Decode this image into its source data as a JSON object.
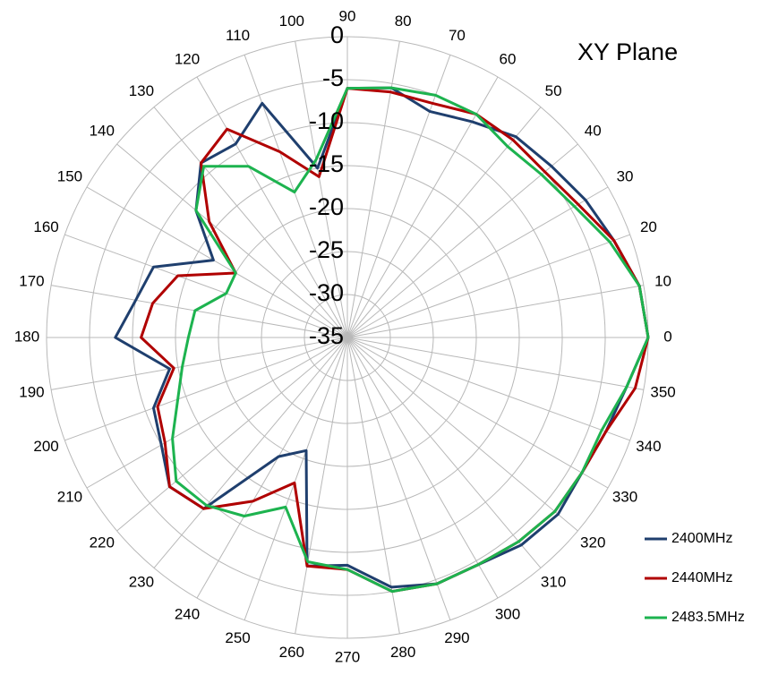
{
  "chart_data": {
    "type": "line",
    "polar": true,
    "title": "XY Plane",
    "r_range": [
      -35,
      0
    ],
    "r_ticks": [
      0,
      -5,
      -10,
      -15,
      -20,
      -25,
      -30,
      -35
    ],
    "angle_ticks": [
      0,
      10,
      20,
      30,
      40,
      50,
      60,
      70,
      80,
      90,
      100,
      110,
      120,
      130,
      140,
      150,
      160,
      170,
      180,
      190,
      200,
      210,
      220,
      230,
      240,
      250,
      260,
      270,
      280,
      290,
      300,
      310,
      320,
      330,
      340,
      350
    ],
    "angle_direction": "counterclockwise",
    "angle_zero": "right",
    "grid": true,
    "legend_position": "bottom-right",
    "angles": [
      0,
      10,
      20,
      30,
      40,
      50,
      60,
      70,
      80,
      90,
      100,
      110,
      120,
      130,
      140,
      150,
      160,
      170,
      180,
      190,
      200,
      210,
      220,
      230,
      240,
      250,
      260,
      270,
      280,
      290,
      300,
      310,
      320,
      330,
      340,
      350
    ],
    "series": [
      {
        "name": "2400MHz",
        "color": "#1f3f6e",
        "values": [
          0,
          -0.5,
          -2,
          -3,
          -4,
          -4.5,
          -6,
          -7,
          -5.5,
          -6,
          -15,
          -6,
          -9,
          -8.5,
          -12,
          -17,
          -11,
          -10,
          -8,
          -14,
          -11,
          -10,
          -8,
          -9,
          -19,
          -21,
          -8,
          -8.5,
          -5.5,
          -4.5,
          -4.5,
          -3.5,
          -3,
          -3.5,
          -3,
          -2
        ]
      },
      {
        "name": "2440MHz",
        "color": "#b00000",
        "values": [
          0,
          -0.5,
          -2,
          -4,
          -5,
          -5,
          -5,
          -6,
          -6,
          -6,
          -16,
          -12,
          -7,
          -8.5,
          -14,
          -20,
          -14,
          -12,
          -11,
          -14.5,
          -11.5,
          -10.5,
          -8,
          -9,
          -13,
          -17,
          -8,
          -8,
          -5,
          -4.5,
          -4.5,
          -4,
          -3.5,
          -3.5,
          -3,
          -1
        ]
      },
      {
        "name": "2483.5MHz",
        "color": "#1db34f",
        "values": [
          0,
          -0.5,
          -2.5,
          -4.5,
          -5.5,
          -6,
          -5,
          -5,
          -5.5,
          -6,
          -14,
          -17,
          -12,
          -9,
          -12,
          -20,
          -20,
          -17,
          -16.5,
          -15.5,
          -14,
          -11.5,
          -9,
          -9.5,
          -11,
          -14,
          -8.5,
          -8,
          -5,
          -4.5,
          -4.5,
          -4,
          -3.5,
          -3.5,
          -3.5,
          -2
        ]
      }
    ]
  }
}
